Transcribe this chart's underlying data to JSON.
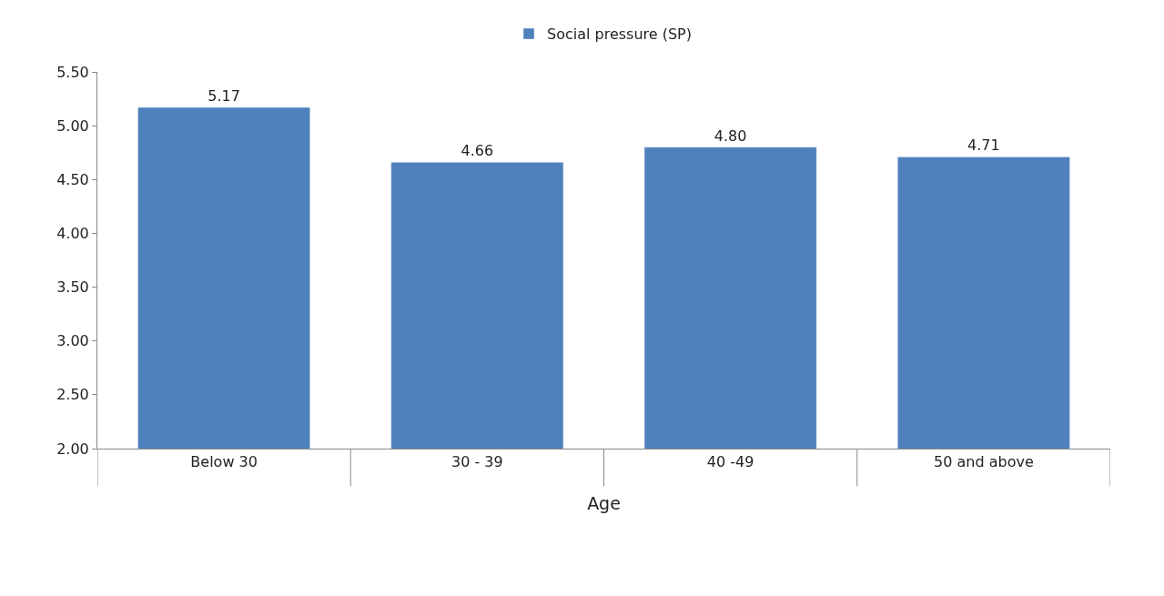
{
  "chart_data": {
    "type": "bar",
    "xlabel": "Age",
    "categories": [
      "Below 30",
      "30 - 39",
      "40 -49",
      "50 and above"
    ],
    "series": [
      {
        "name": "Social pressure (SP)",
        "color": "#4f81bd",
        "values": [
          5.17,
          4.66,
          4.8,
          4.71
        ],
        "value_labels": [
          "5.17",
          "4.66",
          "4.80",
          "4.71"
        ]
      }
    ],
    "ylim": [
      2,
      5.5
    ],
    "yticks": [
      {
        "value": 2,
        "label": "2.00"
      },
      {
        "value": 2.5,
        "label": "2.50"
      },
      {
        "value": 3,
        "label": "3.00"
      },
      {
        "value": 3.5,
        "label": "3.50"
      },
      {
        "value": 4,
        "label": "4.00"
      },
      {
        "value": 4.5,
        "label": "4.50"
      },
      {
        "value": 5,
        "label": "5.00"
      },
      {
        "value": 5.5,
        "label": "5.50"
      }
    ],
    "legend": "top"
  }
}
